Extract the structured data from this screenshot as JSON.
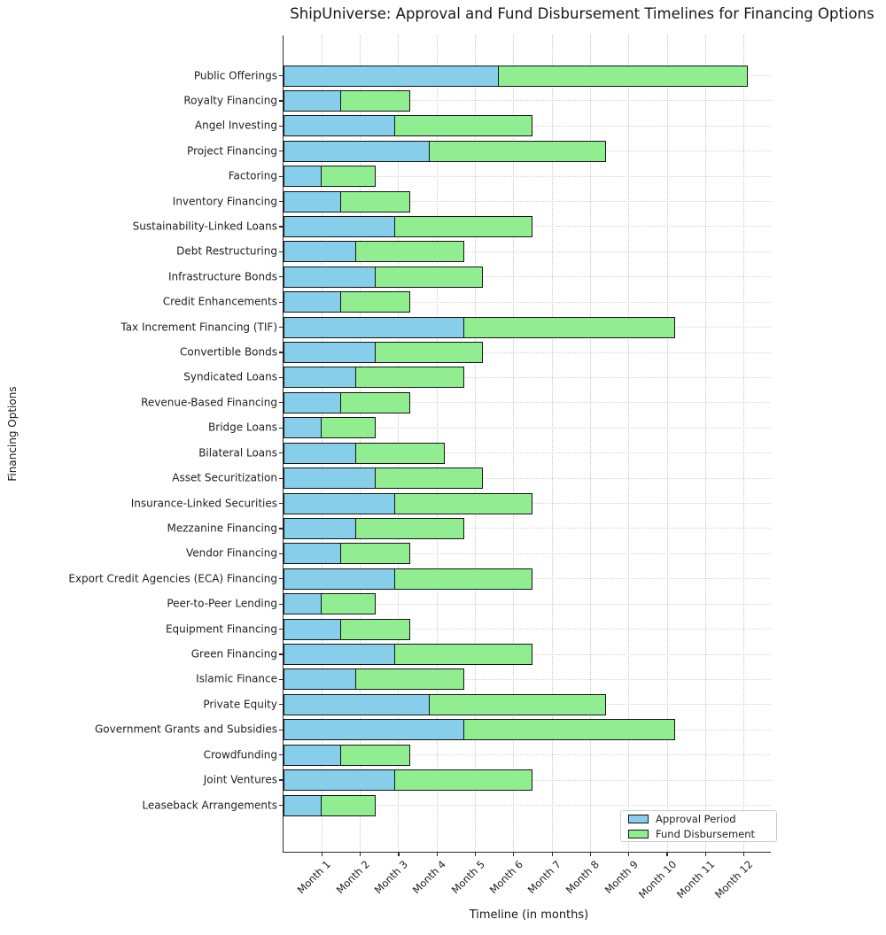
{
  "title": "ShipUniverse: Approval and Fund Disbursement Timelines for Financing Options",
  "chart_data": {
    "type": "bar",
    "orientation": "horizontal",
    "stacked": true,
    "title": "ShipUniverse: Approval and Fund Disbursement Timelines for Financing Options",
    "xlabel": "Timeline (in months)",
    "ylabel": "Financing Options",
    "grid": true,
    "legend_position": "lower right",
    "xlim": [
      0,
      12.7
    ],
    "x_tick_labels": [
      "Month 1",
      "Month 2",
      "Month 3",
      "Month 4",
      "Month 5",
      "Month 6",
      "Month 7",
      "Month 8",
      "Month 9",
      "Month 10",
      "Month 11",
      "Month 12"
    ],
    "categories": [
      "Public Offerings",
      "Royalty Financing",
      "Angel Investing",
      "Project Financing",
      "Factoring",
      "Inventory Financing",
      "Sustainability-Linked Loans",
      "Debt Restructuring",
      "Infrastructure Bonds",
      "Credit Enhancements",
      "Tax Increment Financing (TIF)",
      "Convertible Bonds",
      "Syndicated Loans",
      "Revenue-Based Financing",
      "Bridge Loans",
      "Bilateral Loans",
      "Asset Securitization",
      "Insurance-Linked Securities",
      "Mezzanine Financing",
      "Vendor Financing",
      "Export Credit Agencies (ECA) Financing",
      "Peer-to-Peer Lending",
      "Equipment Financing",
      "Green Financing",
      "Islamic Finance",
      "Private Equity",
      "Government Grants and Subsidies",
      "Crowdfunding",
      "Joint Ventures",
      "Leaseback Arrangements"
    ],
    "series": [
      {
        "name": "Approval Period",
        "color": "#87CEEB",
        "values": [
          5.6,
          1.5,
          2.9,
          3.8,
          1.0,
          1.5,
          2.9,
          1.9,
          2.4,
          1.5,
          4.7,
          2.4,
          1.9,
          1.5,
          1.0,
          1.9,
          2.4,
          2.9,
          1.9,
          1.5,
          2.9,
          1.0,
          1.5,
          2.9,
          1.9,
          3.8,
          4.7,
          1.5,
          2.9,
          1.0
        ]
      },
      {
        "name": "Fund Disbursement",
        "color": "#90EE90",
        "values": [
          6.5,
          1.8,
          3.6,
          4.6,
          1.4,
          1.8,
          3.6,
          2.8,
          2.8,
          1.8,
          5.5,
          2.8,
          2.8,
          1.8,
          1.4,
          2.3,
          2.8,
          3.6,
          2.8,
          1.8,
          3.6,
          1.4,
          1.8,
          3.6,
          2.8,
          4.6,
          5.5,
          1.8,
          3.6,
          1.4
        ]
      }
    ]
  },
  "legend": {
    "items": [
      {
        "label": "Approval Period",
        "color": "#87CEEB"
      },
      {
        "label": "Fund Disbursement",
        "color": "#90EE90"
      }
    ]
  },
  "colors": {
    "approval": "#87CEEB",
    "disbursement": "#90EE90",
    "bar_edge": "#141414",
    "gridline": "#c9c9c9",
    "axis": "#2b2b2b",
    "background": "#ffffff"
  }
}
